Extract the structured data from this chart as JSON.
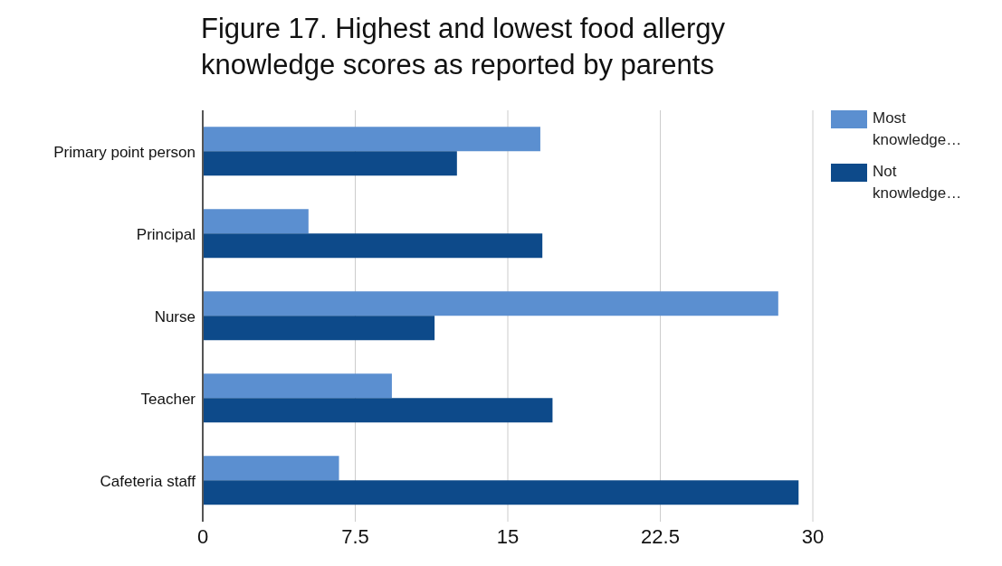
{
  "chart_data": {
    "type": "bar",
    "orientation": "horizontal",
    "title": "Figure 17. Highest and lowest food allergy knowledge scores as reported by parents",
    "categories": [
      "Primary point person",
      "Principal",
      "Nurse",
      "Teacher",
      "Cafeteria staff"
    ],
    "series": [
      {
        "name": "Most knowledge…",
        "color": "#5b8fd0",
        "values": [
          16.6,
          5.2,
          28.3,
          9.3,
          6.7
        ]
      },
      {
        "name": "Not knowledge…",
        "color": "#0d4a8a",
        "values": [
          12.5,
          16.7,
          11.4,
          17.2,
          29.3
        ]
      }
    ],
    "xlim": [
      0,
      30
    ],
    "xticks": [
      0,
      7.5,
      15,
      22.5,
      30
    ],
    "grid": "x",
    "legend": "top right"
  }
}
